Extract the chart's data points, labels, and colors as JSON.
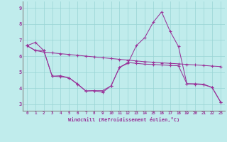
{
  "xlabel": "Windchill (Refroidissement éolien,°C)",
  "bg_color": "#c0ecec",
  "line_color": "#993399",
  "grid_color": "#99d5d5",
  "xlim": [
    -0.5,
    23.5
  ],
  "ylim": [
    2.6,
    9.4
  ],
  "yticks": [
    3,
    4,
    5,
    6,
    7,
    8,
    9
  ],
  "xticks": [
    0,
    1,
    2,
    3,
    4,
    5,
    6,
    7,
    8,
    9,
    10,
    11,
    12,
    13,
    14,
    15,
    16,
    17,
    18,
    19,
    20,
    21,
    22,
    23
  ],
  "line1_x": [
    0,
    1,
    2,
    3,
    4,
    5,
    6,
    7,
    8,
    9,
    10,
    11,
    12,
    13,
    14,
    15,
    16,
    17,
    18,
    19,
    20,
    21,
    22,
    23
  ],
  "line1_y": [
    6.65,
    6.35,
    6.25,
    6.2,
    6.15,
    6.1,
    6.05,
    6.0,
    5.95,
    5.9,
    5.85,
    5.8,
    5.75,
    5.7,
    5.65,
    5.62,
    5.58,
    5.55,
    5.52,
    5.48,
    5.45,
    5.42,
    5.38,
    5.35
  ],
  "line2_x": [
    0,
    1,
    2,
    3,
    4,
    5,
    6,
    7,
    8,
    9,
    10,
    11,
    12,
    13,
    14,
    15,
    16,
    17,
    18,
    19,
    20,
    21,
    22,
    23
  ],
  "line2_y": [
    6.65,
    6.85,
    6.35,
    4.75,
    4.78,
    4.65,
    4.28,
    3.83,
    3.85,
    3.75,
    4.15,
    5.3,
    5.55,
    6.65,
    7.15,
    8.1,
    8.75,
    7.55,
    6.6,
    4.28,
    4.28,
    4.25,
    4.05,
    3.15
  ],
  "line3_x": [
    0,
    1,
    2,
    3,
    4,
    5,
    6,
    7,
    8,
    9,
    10,
    11,
    12,
    13,
    14,
    15,
    16,
    17,
    18,
    19,
    20,
    21,
    22,
    23
  ],
  "line3_y": [
    6.65,
    6.35,
    6.35,
    4.75,
    4.72,
    4.65,
    4.25,
    3.83,
    3.85,
    3.85,
    4.15,
    5.3,
    5.6,
    5.55,
    5.5,
    5.48,
    5.45,
    5.42,
    5.4,
    4.28,
    4.25,
    4.22,
    4.05,
    3.15
  ]
}
